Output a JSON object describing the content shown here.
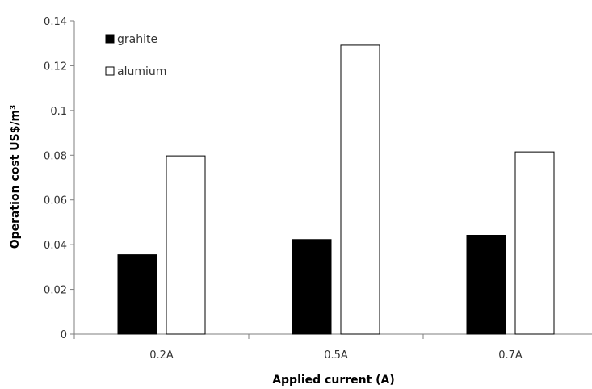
{
  "chart_data": {
    "type": "bar",
    "categories": [
      "0.2A",
      "0.5A",
      "0.7A"
    ],
    "series": [
      {
        "name": "grahite",
        "values": [
          0.0355,
          0.0423,
          0.0442
        ],
        "fill": "#000000",
        "stroke": "#000000"
      },
      {
        "name": "alumium",
        "values": [
          0.0797,
          0.1292,
          0.0815
        ],
        "fill": "#ffffff",
        "stroke": "#000000"
      }
    ],
    "xlabel": "Applied current (A)",
    "ylabel": "Operation cost US$/m³",
    "ylim": [
      0,
      0.14
    ],
    "yticks": [
      "0",
      "0.02",
      "0.04",
      "0.06",
      "0.08",
      "0.1",
      "0.12",
      "0.14"
    ],
    "grid": false,
    "legend_position": "top-left"
  }
}
